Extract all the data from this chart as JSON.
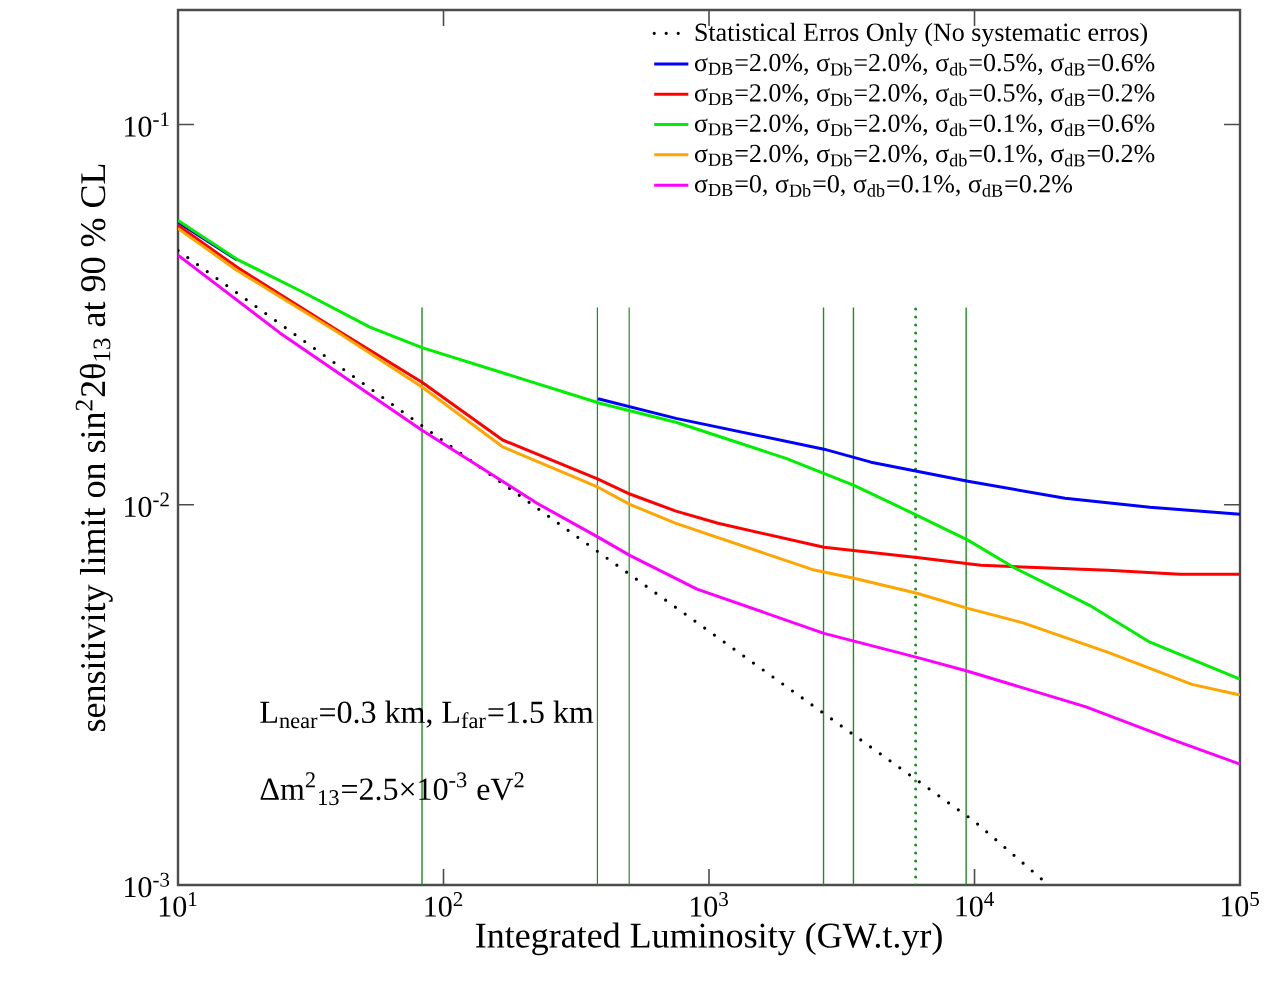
{
  "chart_data": {
    "type": "line",
    "xlabel": "Integrated Luminosity (GW.t.yr)",
    "ylabel": "sensitivity limit on sin$^{2}$2θ$_{13}$ at 90 % CL",
    "log": "xy",
    "legend": "top right",
    "xlim": [
      10,
      100000
    ],
    "ylim": [
      0.001,
      0.2
    ],
    "xticks": [
      {
        "value": 10,
        "label": "10$^{1}$"
      },
      {
        "value": 100,
        "label": "10$^{2}$"
      },
      {
        "value": 1000,
        "label": "10$^{3}$"
      },
      {
        "value": 10000,
        "label": "10$^{4}$"
      },
      {
        "value": 100000,
        "label": "10$^{5}$"
      }
    ],
    "yticks": [
      {
        "value": 0.001,
        "label": "10$^{-3}$"
      },
      {
        "value": 0.01,
        "label": "10$^{-2}$"
      },
      {
        "value": 0.1,
        "label": "10$^{-1}$"
      }
    ],
    "series": [
      {
        "name": "Statistical Erros Only (No systematic erros)",
        "color": "#000000",
        "line_style": "dotted",
        "x": [
          10,
          100,
          1000,
          10000,
          19000
        ],
        "values": [
          0.0466,
          0.0147,
          0.00465,
          0.00147,
          0.001
        ]
      },
      {
        "name": "σ$_{DB}$=2.0%, σ$_{Db}$=2.0%, σ$_{db}$=0.5%, σ$_{dB}$=0.6%",
        "color": "#0000ff",
        "x": [
          10,
          16.7,
          29.6,
          52.8,
          83,
          382,
          751,
          2710,
          4074,
          9444,
          21930,
          45800,
          100000
        ],
        "values": [
          0.0553,
          0.044,
          null,
          null,
          null,
          0.019,
          0.01687,
          0.014,
          0.01294,
          0.01153,
          0.0104,
          0.00985,
          0.00944
        ]
      },
      {
        "name": "σ$_{DB}$=2.0%, σ$_{Db}$=2.0%, σ$_{db}$=0.5%, σ$_{dB}$=0.2%",
        "color": "#ff0000",
        "x": [
          10,
          16.7,
          39.7,
          83,
          167,
          382,
          503,
          751,
          1081,
          2710,
          6070,
          10570,
          31860,
          59400,
          100000
        ],
        "values": [
          0.0543,
          0.0421,
          0.0288,
          0.021,
          0.0148,
          0.01167,
          0.01067,
          0.00962,
          0.00894,
          0.00773,
          0.00727,
          0.00693,
          0.00673,
          0.00656,
          0.00656
        ]
      },
      {
        "name": "σ$_{DB}$=2.0%, σ$_{Db}$=2.0%, σ$_{db}$=0.1%, σ$_{dB}$=0.6%",
        "color": "#00ee00",
        "x": [
          10,
          16.7,
          29.6,
          52.8,
          83,
          388,
          751,
          1950,
          3515,
          6070,
          9444,
          14220,
          27500,
          45800,
          100000
        ],
        "values": [
          0.0559,
          0.0442,
          0.0362,
          0.0293,
          0.0259,
          0.01849,
          0.01648,
          0.01324,
          0.01125,
          0.00938,
          0.00807,
          0.00681,
          0.00541,
          0.00435,
          0.00348
        ]
      },
      {
        "name": "σ$_{DB}$=2.0%, σ$_{Db}$=2.0%, σ$_{db}$=0.1%, σ$_{dB}$=0.2%",
        "color": "#ffa500",
        "x": [
          10,
          16.7,
          39.7,
          83,
          167,
          382,
          503,
          751,
          2443,
          3515,
          6070,
          9444,
          15240,
          31860,
          65900,
          100000
        ],
        "values": [
          0.0533,
          0.0413,
          0.0285,
          0.0204,
          0.0142,
          0.01112,
          0.01002,
          0.00893,
          0.00676,
          0.00641,
          0.00585,
          0.00534,
          0.00489,
          0.00409,
          0.00337,
          0.00316
        ]
      },
      {
        "name": "σ$_{DB}$=0, σ$_{Db}$=0, σ$_{db}$=0.1%, σ$_{dB}$=0.2%",
        "color": "#ff00ff",
        "x": [
          10,
          24.2,
          83,
          225,
          382,
          503,
          901,
          2710,
          6070,
          9444,
          26300,
          54950,
          100000
        ],
        "values": [
          0.0453,
          0.0283,
          0.0157,
          0.01009,
          0.00822,
          0.00736,
          0.006,
          0.00459,
          0.00397,
          0.00365,
          0.00294,
          0.00242,
          0.00208
        ]
      }
    ],
    "ref_lines": [
      {
        "axis": "x",
        "value": 83,
        "color": "#228b22"
      },
      {
        "axis": "x",
        "value": 380,
        "color": "#228b22"
      },
      {
        "axis": "x",
        "value": 500,
        "color": "#228b22"
      },
      {
        "axis": "x",
        "value": 2700,
        "color": "#228b22"
      },
      {
        "axis": "x",
        "value": 3500,
        "color": "#228b22"
      },
      {
        "axis": "x",
        "value": 6000,
        "color": "#228b22",
        "line_style": "dotted"
      },
      {
        "axis": "x",
        "value": 9300,
        "color": "#228b22"
      }
    ],
    "annotations": [
      "L$_{near}$=0.3 km, L$_{far}$=1.5 km",
      "Δm$^{2}$$_{13}$=2.5×10$^{-3}$ eV$^{2}$"
    ]
  }
}
